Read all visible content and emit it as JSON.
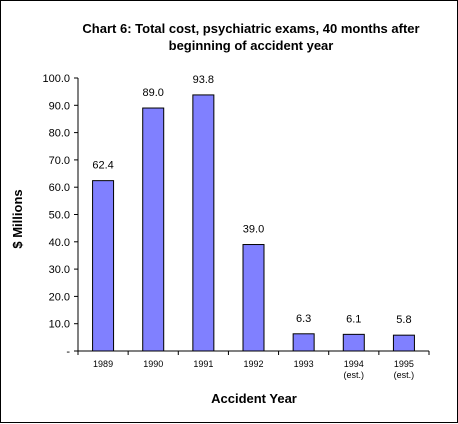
{
  "chart_data": {
    "type": "bar",
    "title_lines": [
      "Chart 6: Total cost, psychiatric exams, 40 months after",
      "beginning of accident year"
    ],
    "xlabel": "Accident Year",
    "ylabel": "$ Millions",
    "categories": [
      [
        "1989"
      ],
      [
        "1990"
      ],
      [
        "1991"
      ],
      [
        "1992"
      ],
      [
        "1993"
      ],
      [
        "1994",
        "(est.)"
      ],
      [
        "1995",
        "(est.)"
      ]
    ],
    "values": [
      62.4,
      89.0,
      93.8,
      39.0,
      6.3,
      6.1,
      5.8
    ],
    "data_labels": [
      "62.4",
      "89.0",
      "93.8",
      "39.0",
      "6.3",
      "6.1",
      "5.8"
    ],
    "yticks": [
      "-",
      "10.0",
      "20.0",
      "30.0",
      "40.0",
      "50.0",
      "60.0",
      "70.0",
      "80.0",
      "90.0",
      "100.0"
    ],
    "ylim": [
      0,
      100
    ],
    "grid": false,
    "legend": "none",
    "colors": {
      "bar_fill": "#8080ff",
      "bar_stroke": "#000000",
      "background": "#ffffff"
    }
  }
}
